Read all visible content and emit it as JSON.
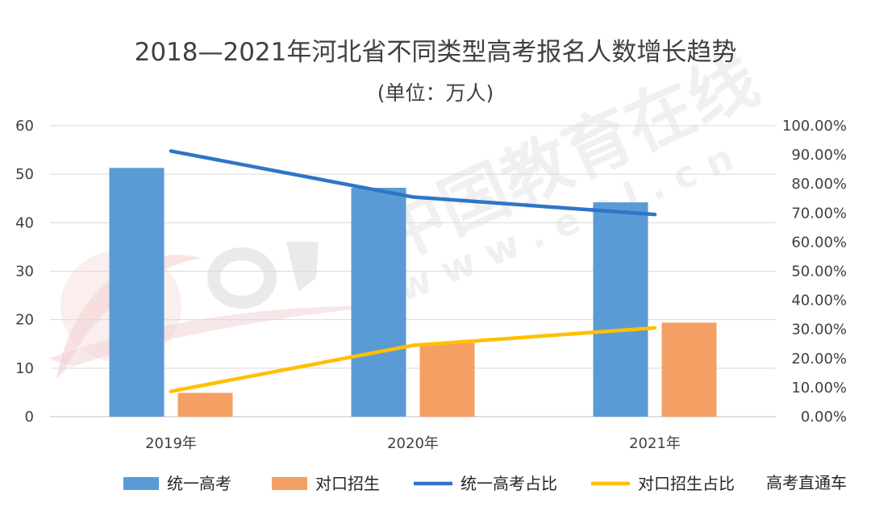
{
  "chart_data": {
    "type": "bar",
    "title": "2018—2021年河北省不同类型高考报名人数增长趋势",
    "subtitle": "(单位：万人)",
    "categories": [
      "2019年",
      "2020年",
      "2021年"
    ],
    "bar_series": [
      {
        "name": "统一高考",
        "values": [
          51.3,
          47.2,
          44.2
        ],
        "color": "#5B9BD5"
      },
      {
        "name": "对口招生",
        "values": [
          4.9,
          15.2,
          19.4
        ],
        "color": "#F4A064"
      }
    ],
    "line_series": [
      {
        "name": "统一高考占比",
        "values": [
          91.3,
          75.5,
          69.5
        ],
        "color": "#2E75C7",
        "axis": "right"
      },
      {
        "name": "对口招生占比",
        "values": [
          8.7,
          24.5,
          30.5
        ],
        "color": "#FFC000",
        "axis": "right"
      }
    ],
    "y_left": {
      "min": 0,
      "max": 60,
      "ticks": [
        "0",
        "10",
        "20",
        "30",
        "40",
        "50",
        "60"
      ]
    },
    "y_right": {
      "min": 0,
      "max": 100,
      "ticks": [
        "0.00%",
        "10.00%",
        "20.00%",
        "30.00%",
        "40.00%",
        "50.00%",
        "60.00%",
        "70.00%",
        "80.00%",
        "90.00%",
        "100.00%"
      ]
    },
    "grid": true,
    "legend_position": "bottom"
  },
  "watermark": {
    "site_cn": "中国教育在线",
    "site_url": "w w w . e o l . c n",
    "logo": "eol"
  },
  "footer_label": "高考直通车"
}
